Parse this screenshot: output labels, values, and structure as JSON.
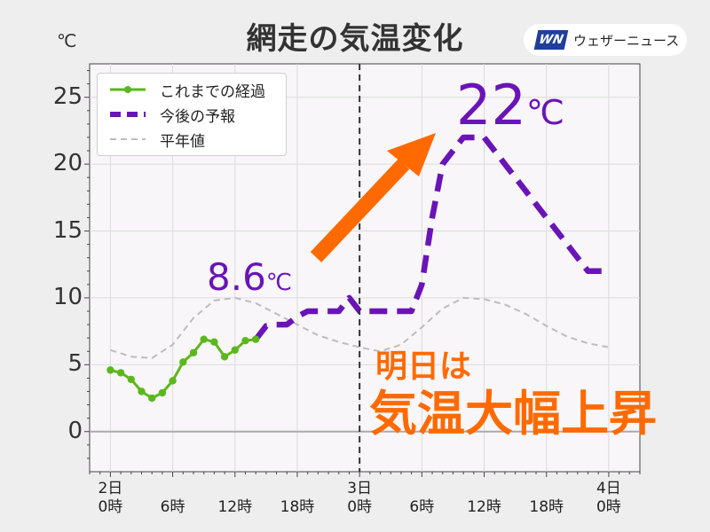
{
  "title": "網走の気温変化",
  "unit_label": "℃",
  "logo": {
    "mark": "WN",
    "text": "ウェザーニュース"
  },
  "colors": {
    "observed": "#5bb81c",
    "forecast": "#6a14b8",
    "normal": "#bdbdbd",
    "annotation": "#ff6a00",
    "arrow": "#ff6a00",
    "plot_bg": "#f8f6f8"
  },
  "legend": {
    "observed": "これまでの経過",
    "forecast": "今後の予報",
    "normal": "平年値"
  },
  "callouts": {
    "current_value": "8.6",
    "current_unit": "℃",
    "forecast_value": "22",
    "forecast_unit": "℃"
  },
  "annotation": {
    "line1": "明日は",
    "line2": "気温大幅上昇"
  },
  "chart_data": {
    "type": "line",
    "title": "網走の気温変化",
    "xlabel": "",
    "ylabel": "℃",
    "ylim": [
      -3,
      27.5
    ],
    "xlim": [
      -2,
      51
    ],
    "x_unit": "hours since 2日 0時",
    "grid": true,
    "legend_position": "top-left",
    "yticks": [
      0,
      5,
      10,
      15,
      20,
      25
    ],
    "xticks": [
      {
        "hour": 0,
        "label": "2日\n0時"
      },
      {
        "hour": 6,
        "label": "6時"
      },
      {
        "hour": 12,
        "label": "12時"
      },
      {
        "hour": 18,
        "label": "18時"
      },
      {
        "hour": 24,
        "label": "3日\n0時"
      },
      {
        "hour": 30,
        "label": "6時"
      },
      {
        "hour": 36,
        "label": "12時"
      },
      {
        "hour": 42,
        "label": "18時"
      },
      {
        "hour": 48,
        "label": "4日\n0時"
      }
    ],
    "divider_hour": 24,
    "series": [
      {
        "name": "これまでの経過",
        "style": "solid-markers",
        "x": [
          0,
          1,
          2,
          3,
          4,
          5,
          6,
          7,
          8,
          9,
          10,
          11,
          12,
          13,
          14
        ],
        "y": [
          4.6,
          4.4,
          3.9,
          3.0,
          2.5,
          2.9,
          3.8,
          5.2,
          5.9,
          6.9,
          6.7,
          5.6,
          6.1,
          6.8,
          6.9
        ]
      },
      {
        "name": "今後の予報",
        "style": "dashed",
        "x": [
          14,
          15,
          16,
          17,
          18,
          19,
          20,
          21,
          22,
          23,
          24,
          25,
          26,
          27,
          28,
          29,
          30,
          31,
          32,
          33,
          34,
          35,
          36,
          37,
          38,
          39,
          40,
          41,
          42,
          43,
          44,
          45,
          46,
          47,
          48
        ],
        "y": [
          6.9,
          7.9,
          8.0,
          8.0,
          8.6,
          9.0,
          9.0,
          9.0,
          9.0,
          10.0,
          9.0,
          9.0,
          9.0,
          9.0,
          9.0,
          9.0,
          11.0,
          16.0,
          20.0,
          21.0,
          22.0,
          22.0,
          22.0,
          21.0,
          20.0,
          19.0,
          18.0,
          17.0,
          16.0,
          15.0,
          14.0,
          13.0,
          12.0,
          12.0,
          12.0
        ]
      },
      {
        "name": "平年値",
        "style": "dashed-thin",
        "x": [
          0,
          2,
          4,
          6,
          8,
          10,
          12,
          14,
          16,
          18,
          20,
          22,
          24,
          26,
          28,
          30,
          32,
          34,
          36,
          38,
          40,
          42,
          44,
          46,
          48
        ],
        "y": [
          6.1,
          5.6,
          5.5,
          6.5,
          8.5,
          9.8,
          10.0,
          9.6,
          8.8,
          8.0,
          7.2,
          6.7,
          6.3,
          6.0,
          6.5,
          7.8,
          9.2,
          10.0,
          9.9,
          9.5,
          8.8,
          7.9,
          7.1,
          6.6,
          6.3
        ]
      }
    ],
    "annotations": [
      {
        "text": "8.6℃",
        "hour": 16,
        "value": 8.6
      },
      {
        "text": "22℃",
        "hour": 35,
        "value": 22
      }
    ]
  }
}
